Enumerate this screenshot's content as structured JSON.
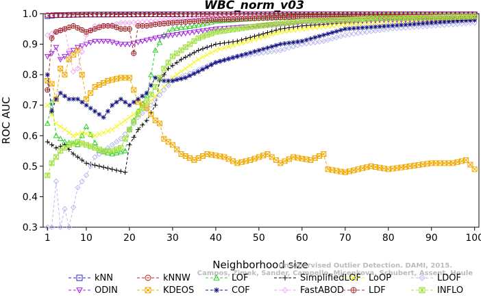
{
  "chart_data": {
    "type": "line",
    "title": "WBC_norm_v03",
    "xlabel": "Neighborhood size",
    "ylabel": "ROC AUC",
    "xlim": [
      0,
      101
    ],
    "ylim": [
      0.3,
      1.0
    ],
    "xticks": [
      1,
      10,
      20,
      30,
      40,
      50,
      60,
      70,
      80,
      90,
      100
    ],
    "xtick_labels": [
      "1",
      "10",
      "20",
      "30",
      "40",
      "50",
      "60",
      "70",
      "80",
      "90",
      "100"
    ],
    "yticks": [
      0.3,
      0.4,
      0.5,
      0.6,
      0.7,
      0.8,
      0.9,
      1.0
    ],
    "ytick_labels": [
      "0.3",
      "0.4",
      "0.5",
      "0.6",
      "0.7",
      "0.8",
      "0.9",
      "1.0"
    ],
    "grid": false,
    "legend_placement": "bottom",
    "watermark_lines": [
      "Unsupervised Outlier Detection. DAMI, 2015.",
      "Campos, Zimek, Sander, Campello, Micenkova, Schubert, Assent, Houle"
    ],
    "series": [
      {
        "name": "kNN",
        "color": "#1f1fd0",
        "marker": "square",
        "keypoints": [
          [
            1,
            0.992
          ],
          [
            3,
            0.995
          ],
          [
            10,
            0.997
          ],
          [
            30,
            0.998
          ],
          [
            60,
            0.998
          ],
          [
            100,
            0.998
          ]
        ]
      },
      {
        "name": "kNNW",
        "color": "#c01818",
        "marker": "circle",
        "keypoints": [
          [
            1,
            0.995
          ],
          [
            10,
            0.997
          ],
          [
            40,
            0.998
          ],
          [
            100,
            0.998
          ]
        ]
      },
      {
        "name": "LOF",
        "color": "#2ad02a",
        "marker": "triangle-up",
        "keypoints": [
          [
            1,
            0.64
          ],
          [
            2,
            0.71
          ],
          [
            3,
            0.6
          ],
          [
            5,
            0.58
          ],
          [
            8,
            0.57
          ],
          [
            10,
            0.63
          ],
          [
            13,
            0.55
          ],
          [
            16,
            0.54
          ],
          [
            19,
            0.55
          ],
          [
            20,
            0.62
          ],
          [
            22,
            0.68
          ],
          [
            24,
            0.73
          ],
          [
            25,
            0.8
          ],
          [
            26,
            0.88
          ],
          [
            28,
            0.93
          ],
          [
            30,
            0.95
          ],
          [
            35,
            0.96
          ],
          [
            40,
            0.975
          ],
          [
            50,
            0.985
          ],
          [
            60,
            0.99
          ],
          [
            70,
            0.993
          ],
          [
            80,
            0.995
          ],
          [
            100,
            0.997
          ]
        ]
      },
      {
        "name": "SimplifiedLOF",
        "color": "#000000",
        "marker": "plus",
        "keypoints": [
          [
            1,
            0.58
          ],
          [
            3,
            0.56
          ],
          [
            5,
            0.57
          ],
          [
            7,
            0.54
          ],
          [
            10,
            0.51
          ],
          [
            13,
            0.5
          ],
          [
            16,
            0.49
          ],
          [
            19,
            0.48
          ],
          [
            20,
            0.57
          ],
          [
            22,
            0.62
          ],
          [
            24,
            0.65
          ],
          [
            26,
            0.7
          ],
          [
            27,
            0.78
          ],
          [
            29,
            0.82
          ],
          [
            32,
            0.85
          ],
          [
            36,
            0.88
          ],
          [
            40,
            0.9
          ],
          [
            45,
            0.91
          ],
          [
            50,
            0.93
          ],
          [
            55,
            0.95
          ],
          [
            60,
            0.96
          ],
          [
            70,
            0.97
          ],
          [
            80,
            0.98
          ],
          [
            90,
            0.985
          ],
          [
            100,
            0.99
          ]
        ]
      },
      {
        "name": "LoOP",
        "color": "#f5f51a",
        "marker": "x",
        "keypoints": [
          [
            1,
            0.7
          ],
          [
            3,
            0.64
          ],
          [
            5,
            0.62
          ],
          [
            7,
            0.6
          ],
          [
            9,
            0.61
          ],
          [
            12,
            0.6
          ],
          [
            14,
            0.61
          ],
          [
            16,
            0.62
          ],
          [
            18,
            0.64
          ],
          [
            20,
            0.66
          ],
          [
            22,
            0.68
          ],
          [
            24,
            0.7
          ],
          [
            26,
            0.73
          ],
          [
            28,
            0.76
          ],
          [
            30,
            0.79
          ],
          [
            33,
            0.82
          ],
          [
            36,
            0.85
          ],
          [
            40,
            0.88
          ],
          [
            45,
            0.9
          ],
          [
            50,
            0.92
          ],
          [
            55,
            0.94
          ],
          [
            60,
            0.95
          ],
          [
            70,
            0.965
          ],
          [
            80,
            0.975
          ],
          [
            90,
            0.98
          ],
          [
            100,
            0.985
          ]
        ]
      },
      {
        "name": "LDOF",
        "color": "#b8b8f0",
        "marker": "diamond",
        "keypoints": [
          [
            1,
            0.3
          ],
          [
            2,
            0.3
          ],
          [
            3,
            0.45
          ],
          [
            4,
            0.3
          ],
          [
            5,
            0.36
          ],
          [
            6,
            0.3
          ],
          [
            8,
            0.43
          ],
          [
            10,
            0.47
          ],
          [
            12,
            0.53
          ],
          [
            15,
            0.56
          ],
          [
            18,
            0.59
          ],
          [
            20,
            0.62
          ],
          [
            22,
            0.66
          ],
          [
            25,
            0.7
          ],
          [
            28,
            0.75
          ],
          [
            30,
            0.78
          ],
          [
            35,
            0.81
          ],
          [
            40,
            0.84
          ],
          [
            45,
            0.86
          ],
          [
            50,
            0.87
          ],
          [
            55,
            0.88
          ],
          [
            60,
            0.9
          ],
          [
            65,
            0.91
          ],
          [
            70,
            0.93
          ],
          [
            80,
            0.95
          ],
          [
            90,
            0.96
          ],
          [
            100,
            0.97
          ]
        ]
      },
      {
        "name": "ODIN",
        "color": "#a020e0",
        "marker": "triangle-down",
        "keypoints": [
          [
            1,
            0.86
          ],
          [
            2,
            0.87
          ],
          [
            3,
            0.89
          ],
          [
            4,
            0.85
          ],
          [
            6,
            0.87
          ],
          [
            8,
            0.89
          ],
          [
            10,
            0.9
          ],
          [
            12,
            0.91
          ],
          [
            15,
            0.91
          ],
          [
            18,
            0.9
          ],
          [
            20,
            0.9
          ],
          [
            23,
            0.91
          ],
          [
            26,
            0.92
          ],
          [
            30,
            0.93
          ],
          [
            40,
            0.95
          ],
          [
            50,
            0.96
          ],
          [
            60,
            0.97
          ],
          [
            70,
            0.975
          ],
          [
            80,
            0.98
          ],
          [
            90,
            0.98
          ],
          [
            100,
            0.98
          ]
        ]
      },
      {
        "name": "KDEOS",
        "color": "#f0a800",
        "marker": "square-x",
        "keypoints": [
          [
            1,
            0.78
          ],
          [
            2,
            0.77
          ],
          [
            3,
            0.72
          ],
          [
            4,
            0.82
          ],
          [
            5,
            0.8
          ],
          [
            6,
            0.85
          ],
          [
            8,
            0.88
          ],
          [
            10,
            0.72
          ],
          [
            12,
            0.76
          ],
          [
            15,
            0.78
          ],
          [
            18,
            0.79
          ],
          [
            20,
            0.79
          ],
          [
            22,
            0.71
          ],
          [
            24,
            0.69
          ],
          [
            26,
            0.65
          ],
          [
            27,
            0.64
          ],
          [
            28,
            0.59
          ],
          [
            30,
            0.57
          ],
          [
            32,
            0.54
          ],
          [
            35,
            0.52
          ],
          [
            38,
            0.54
          ],
          [
            42,
            0.53
          ],
          [
            45,
            0.51
          ],
          [
            48,
            0.52
          ],
          [
            52,
            0.54
          ],
          [
            55,
            0.51
          ],
          [
            58,
            0.53
          ],
          [
            62,
            0.52
          ],
          [
            65,
            0.54
          ],
          [
            66,
            0.49
          ],
          [
            70,
            0.48
          ],
          [
            73,
            0.49
          ],
          [
            76,
            0.5
          ],
          [
            80,
            0.49
          ],
          [
            85,
            0.5
          ],
          [
            90,
            0.51
          ],
          [
            95,
            0.51
          ],
          [
            98,
            0.52
          ],
          [
            100,
            0.49
          ]
        ]
      },
      {
        "name": "COF",
        "color": "#101080",
        "marker": "star",
        "keypoints": [
          [
            1,
            0.8
          ],
          [
            2,
            0.68
          ],
          [
            3,
            0.72
          ],
          [
            4,
            0.74
          ],
          [
            6,
            0.72
          ],
          [
            8,
            0.72
          ],
          [
            10,
            0.7
          ],
          [
            12,
            0.68
          ],
          [
            14,
            0.66
          ],
          [
            16,
            0.7
          ],
          [
            18,
            0.72
          ],
          [
            20,
            0.7
          ],
          [
            22,
            0.72
          ],
          [
            24,
            0.74
          ],
          [
            26,
            0.79
          ],
          [
            28,
            0.78
          ],
          [
            30,
            0.78
          ],
          [
            33,
            0.79
          ],
          [
            36,
            0.81
          ],
          [
            40,
            0.84
          ],
          [
            45,
            0.86
          ],
          [
            50,
            0.88
          ],
          [
            55,
            0.9
          ],
          [
            60,
            0.91
          ],
          [
            65,
            0.93
          ],
          [
            70,
            0.95
          ],
          [
            80,
            0.96
          ],
          [
            90,
            0.97
          ],
          [
            100,
            0.98
          ]
        ]
      },
      {
        "name": "FastABOD",
        "color": "#f0a8f0",
        "marker": "diamond",
        "keypoints": [
          [
            1,
            0.93
          ],
          [
            3,
            0.94
          ],
          [
            5,
            0.95
          ],
          [
            7,
            0.81
          ],
          [
            8,
            0.82
          ],
          [
            10,
            0.93
          ],
          [
            12,
            0.96
          ],
          [
            15,
            0.96
          ],
          [
            18,
            0.97
          ],
          [
            20,
            0.97
          ],
          [
            30,
            0.98
          ],
          [
            40,
            0.99
          ],
          [
            60,
            0.99
          ],
          [
            100,
            0.995
          ]
        ]
      },
      {
        "name": "LDF",
        "color": "#a02828",
        "marker": "circle-plus",
        "keypoints": [
          [
            1,
            0.75
          ],
          [
            2,
            0.92
          ],
          [
            3,
            0.94
          ],
          [
            5,
            0.95
          ],
          [
            7,
            0.96
          ],
          [
            10,
            0.94
          ],
          [
            12,
            0.95
          ],
          [
            14,
            0.96
          ],
          [
            16,
            0.96
          ],
          [
            18,
            0.95
          ],
          [
            20,
            0.95
          ],
          [
            21,
            0.87
          ],
          [
            22,
            0.96
          ],
          [
            24,
            0.96
          ],
          [
            26,
            0.965
          ],
          [
            30,
            0.97
          ],
          [
            40,
            0.98
          ],
          [
            50,
            0.985
          ],
          [
            60,
            0.99
          ],
          [
            80,
            0.99
          ],
          [
            100,
            0.99
          ]
        ]
      },
      {
        "name": "INFLO",
        "color": "#a0e040",
        "marker": "star-square",
        "keypoints": [
          [
            1,
            0.47
          ],
          [
            2,
            0.51
          ],
          [
            3,
            0.53
          ],
          [
            4,
            0.55
          ],
          [
            6,
            0.57
          ],
          [
            8,
            0.58
          ],
          [
            10,
            0.57
          ],
          [
            12,
            0.56
          ],
          [
            14,
            0.55
          ],
          [
            16,
            0.55
          ],
          [
            18,
            0.56
          ],
          [
            20,
            0.62
          ],
          [
            22,
            0.67
          ],
          [
            24,
            0.71
          ],
          [
            26,
            0.76
          ],
          [
            28,
            0.82
          ],
          [
            30,
            0.86
          ],
          [
            33,
            0.89
          ],
          [
            36,
            0.92
          ],
          [
            40,
            0.94
          ],
          [
            45,
            0.95
          ],
          [
            50,
            0.96
          ],
          [
            60,
            0.975
          ],
          [
            70,
            0.98
          ],
          [
            80,
            0.985
          ],
          [
            100,
            0.99
          ]
        ]
      }
    ]
  }
}
